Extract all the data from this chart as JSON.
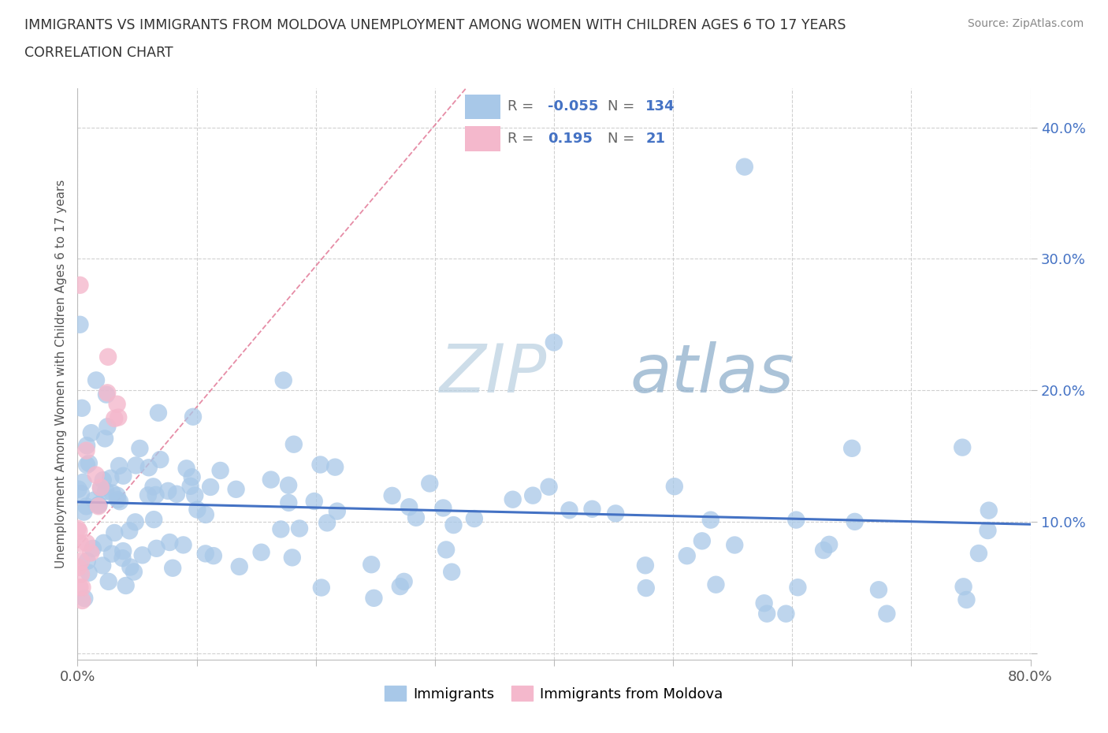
{
  "title_line1": "IMMIGRANTS VS IMMIGRANTS FROM MOLDOVA UNEMPLOYMENT AMONG WOMEN WITH CHILDREN AGES 6 TO 17 YEARS",
  "title_line2": "CORRELATION CHART",
  "source": "Source: ZipAtlas.com",
  "ylabel": "Unemployment Among Women with Children Ages 6 to 17 years",
  "xlim": [
    0.0,
    0.8
  ],
  "ylim": [
    -0.005,
    0.43
  ],
  "immigrants_color": "#a8c8e8",
  "immigrants_line_color": "#4472c4",
  "moldova_color": "#f4b8cc",
  "moldova_line_color": "#e07090",
  "background_color": "#ffffff",
  "grid_color": "#d0d0d0",
  "watermark": "ZIPatlas",
  "watermark_zip_color": "#c8d8e8",
  "watermark_atlas_color": "#9ab8d0"
}
